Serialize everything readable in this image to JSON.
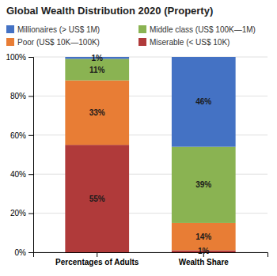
{
  "chart_data": {
    "type": "bar",
    "stacked": true,
    "title": "Global Wealth Distribution 2020 (Property)",
    "categories": [
      "Percentages of Adults",
      "Wealth Share"
    ],
    "series": [
      {
        "name": "Miserable (< US$ 10K)",
        "color": "#b03a3a",
        "values": [
          55,
          1
        ],
        "value_labels": [
          "55%",
          "1%"
        ]
      },
      {
        "name": "Poor (US$ 10K—100K)",
        "color": "#e87d35",
        "values": [
          33,
          14
        ],
        "value_labels": [
          "33%",
          "14%"
        ]
      },
      {
        "name": "Middle class (US$ 100K—1M)",
        "color": "#8ab352",
        "values": [
          11,
          39
        ],
        "value_labels": [
          "11%",
          "39%"
        ]
      },
      {
        "name": "Millionaires (> US$ 1M)",
        "color": "#4472c4",
        "values": [
          1,
          46
        ],
        "value_labels": [
          "1%",
          "46%"
        ]
      }
    ],
    "ylim": [
      0,
      100
    ],
    "yticks": [
      {
        "value": 0,
        "label": "0%"
      },
      {
        "value": 20,
        "label": "20%"
      },
      {
        "value": 40,
        "label": "40%"
      },
      {
        "value": 60,
        "label": "60%"
      },
      {
        "value": 80,
        "label": "80%"
      },
      {
        "value": 100,
        "label": "100%"
      }
    ],
    "grid": true,
    "legend": "top",
    "data_labels": true
  }
}
